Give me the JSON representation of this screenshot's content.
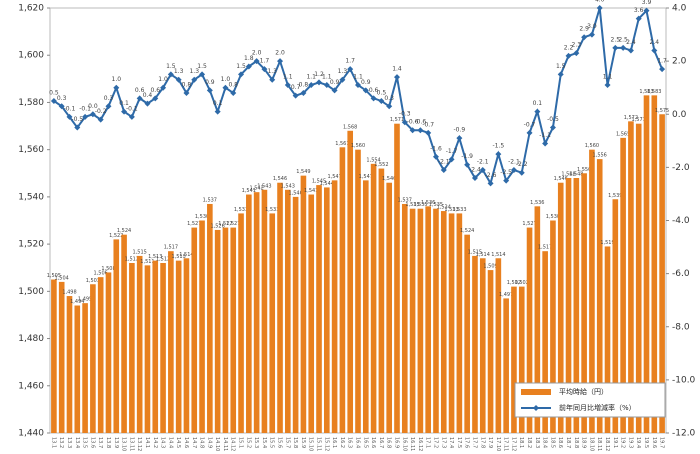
{
  "chart_data": {
    "type": "bar",
    "categories": [
      "13.1",
      "13.2",
      "13.3",
      "13.4",
      "13.5",
      "13.6",
      "13.7",
      "13.8",
      "13.9",
      "13.10",
      "13.11",
      "13.12",
      "14.1",
      "14.2",
      "14.3",
      "14.4",
      "14.5",
      "14.6",
      "14.7",
      "14.8",
      "14.9",
      "14.10",
      "14.11",
      "14.12",
      "15.1",
      "15.2",
      "15.3",
      "15.4",
      "15.5",
      "15.6",
      "15.7",
      "15.8",
      "15.9",
      "15.10",
      "15.11",
      "15.12",
      "16.1",
      "16.2",
      "16.3",
      "16.4",
      "16.5",
      "16.6",
      "16.7",
      "16.8",
      "16.9",
      "16.10",
      "16.11",
      "16.12",
      "17.1",
      "17.2",
      "17.3",
      "17.4",
      "17.5",
      "17.6",
      "17.7",
      "17.8",
      "17.9",
      "17.10",
      "17.11",
      "17.12",
      "18.1",
      "18.2",
      "18.3",
      "18.4",
      "18.5",
      "18.6",
      "18.7",
      "18.8",
      "18.9",
      "18.10",
      "18.11",
      "18.12",
      "19.1",
      "19.2",
      "19.3",
      "19.4",
      "19.5",
      "19.6",
      "19.7"
    ],
    "series": [
      {
        "name": "平均時給（円）",
        "type": "bar",
        "color": "#e8801f",
        "values": [
          1505,
          1504,
          1498,
          1494,
          1495,
          1503,
          1506,
          1508,
          1522,
          1524,
          1512,
          1515,
          1511,
          1513,
          1512,
          1517,
          1513,
          1514,
          1527,
          1530,
          1537,
          1526,
          1527,
          1527,
          1533,
          1541,
          1542,
          1543,
          1533,
          1546,
          1543,
          1540,
          1549,
          1541,
          1545,
          1544,
          1547,
          1561,
          1568,
          1560,
          1547,
          1554,
          1552,
          1546,
          1571,
          1537,
          1535,
          1535,
          1536,
          1535,
          1534,
          1533,
          1533,
          1524,
          1515,
          1514,
          1509,
          1514,
          1497,
          1502,
          1502,
          1527,
          1536,
          1517,
          1530,
          1546,
          1548,
          1548,
          1550,
          1560,
          1556,
          1519,
          1539,
          1565,
          1572,
          1571,
          1583,
          1583,
          1575
        ],
        "value_labels": [
          "1,505",
          "1,504",
          "1,498",
          "1,494",
          "1,495",
          "1,503",
          "1,506",
          "1,508",
          "1,522",
          "1,524",
          "1,512",
          "1,515",
          "1,511",
          "1,513",
          "1,512",
          "1,517",
          "1,513",
          "1,514",
          "1,527",
          "1,530",
          "1,537",
          "1,526",
          "1,527",
          "1,527",
          "1,533",
          "1,541",
          "1,542",
          "1,543",
          "1,533",
          "1,546",
          "1,543",
          "1,540",
          "1,549",
          "1,541",
          "1,545",
          "1,544",
          "1,547",
          "1,561",
          "1,568",
          "1,560",
          "1,547",
          "1,554",
          "1,552",
          "1,546",
          "1,571",
          "1,537",
          "1,535",
          "1,535",
          "1,536",
          "1,535",
          "1,534",
          "1,533",
          "1,533",
          "1,524",
          "1,515",
          "1,514",
          "1,509",
          "1,514",
          "1,497",
          "1,502",
          "1,502",
          "1,527",
          "1,536",
          "1,517",
          "1,530",
          "1,546",
          "1,548",
          "1,548",
          "1,550",
          "1,560",
          "1,556",
          "1,519",
          "1,539",
          "1,565",
          "1,572",
          "1,571",
          "1,583",
          "1,583",
          "1,575"
        ]
      },
      {
        "name": "前年同月比増減率（%）",
        "type": "line",
        "axis": "y2",
        "color": "#2e6aa8",
        "values": [
          0.5,
          0.3,
          -0.1,
          -0.5,
          -0.1,
          0.0,
          -0.2,
          0.3,
          1.0,
          0.1,
          -0.1,
          0.6,
          0.4,
          0.6,
          1.0,
          1.5,
          1.3,
          0.8,
          1.3,
          1.5,
          0.9,
          0.1,
          1.0,
          0.8,
          1.5,
          1.8,
          2.0,
          1.7,
          1.3,
          2.0,
          1.1,
          0.7,
          0.8,
          1.1,
          1.2,
          1.1,
          0.9,
          1.3,
          1.7,
          1.1,
          0.9,
          0.6,
          0.5,
          0.3,
          1.4,
          -0.3,
          -0.6,
          -0.6,
          -0.7,
          -1.6,
          -2.1,
          -1.7,
          -0.9,
          -1.9,
          -2.4,
          -2.1,
          -2.6,
          -1.5,
          -2.5,
          -2.1,
          -2.2,
          -0.7,
          0.1,
          -1.1,
          -0.5,
          1.5,
          2.2,
          2.3,
          2.9,
          3.0,
          4.0,
          1.1,
          2.5,
          2.5,
          2.4,
          3.6,
          3.9,
          2.4,
          1.7
        ],
        "value_labels": [
          "0.5",
          "0.3",
          "-0.1",
          "-0.5",
          "-0.1",
          "0.0",
          "-0.2",
          "0.3",
          "1.0",
          "0.1",
          "-0.1",
          "0.6",
          "0.4",
          "0.6",
          "1.0",
          "1.5",
          "1.3",
          "0.8",
          "1.3",
          "1.5",
          "0.9",
          "0.1",
          "1.0",
          "0.8",
          "1.5",
          "1.8",
          "2.0",
          "1.7",
          "1.3",
          "2.0",
          "1.1",
          "0.7",
          "0.8",
          "1.1",
          "1.2",
          "1.1",
          "0.9",
          "1.3",
          "1.7",
          "1.1",
          "0.9",
          "0.6",
          "0.5",
          "0.3",
          "1.4",
          "-0.3",
          "-0.6",
          "-0.6",
          "-0.7",
          "-1.6",
          "-2.1",
          "-1.7",
          "-0.9",
          "-1.9",
          "-2.4",
          "-2.1",
          "-2.6",
          "-1.5",
          "-2.5",
          "-2.1",
          "-2.2",
          "-0.7",
          "0.1",
          "-1.1",
          "-0.5",
          "1.5",
          "2.2",
          "2.3",
          "2.9",
          "3.0",
          "4.0",
          "1.1",
          "2.5",
          "2.5",
          "2.4",
          "3.6",
          "3.9",
          "2.4",
          "1.7"
        ]
      }
    ],
    "ylim": [
      1440,
      1620
    ],
    "yticks": [
      {
        "value": 1440,
        "label": "1,440"
      },
      {
        "value": 1460,
        "label": "1,460"
      },
      {
        "value": 1480,
        "label": "1,480"
      },
      {
        "value": 1500,
        "label": "1,500"
      },
      {
        "value": 1520,
        "label": "1,520"
      },
      {
        "value": 1540,
        "label": "1,540"
      },
      {
        "value": 1560,
        "label": "1,560"
      },
      {
        "value": 1580,
        "label": "1,580"
      },
      {
        "value": 1600,
        "label": "1,600"
      },
      {
        "value": 1620,
        "label": "1,620"
      }
    ],
    "y2lim": [
      -12,
      4
    ],
    "y2ticks": [
      {
        "value": -12,
        "label": "-12.0"
      },
      {
        "value": -10,
        "label": "-10.0"
      },
      {
        "value": -8,
        "label": "-8.0"
      },
      {
        "value": -6,
        "label": "-6.0"
      },
      {
        "value": -4,
        "label": "-4.0"
      },
      {
        "value": -2,
        "label": "-2.0"
      },
      {
        "value": 0,
        "label": "0.0"
      },
      {
        "value": 2,
        "label": "2.0"
      },
      {
        "value": 4,
        "label": "4.0"
      }
    ],
    "legend": "lower right"
  }
}
